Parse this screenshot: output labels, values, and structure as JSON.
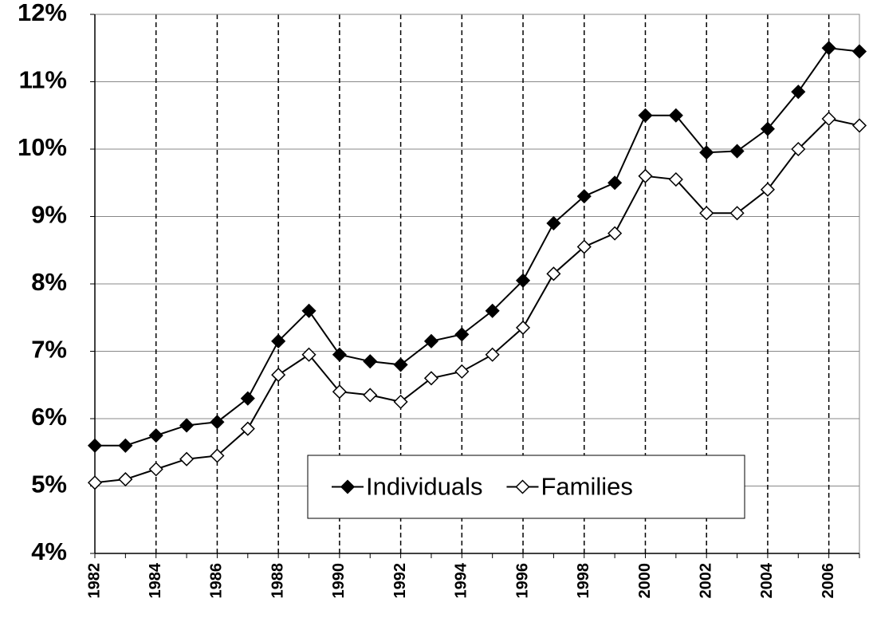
{
  "chart_data": {
    "type": "line",
    "categories": [
      "1982",
      null,
      "1984",
      null,
      "1986",
      null,
      "1988",
      null,
      "1990",
      null,
      "1992",
      null,
      "1994",
      null,
      "1996",
      null,
      "1998",
      null,
      "2000",
      null,
      "2002",
      null,
      "2004",
      null,
      "2006",
      null
    ],
    "series": [
      {
        "name": "Individuals",
        "color": "#000000",
        "marker": "filled-diamond",
        "values": [
          5.6,
          5.6,
          5.75,
          5.9,
          5.95,
          6.3,
          7.15,
          7.6,
          6.95,
          6.85,
          6.8,
          7.15,
          7.25,
          7.6,
          8.05,
          8.9,
          9.3,
          9.5,
          10.5,
          10.5,
          9.95,
          9.97,
          10.3,
          10.85,
          11.5,
          11.45
        ]
      },
      {
        "name": "Families",
        "color": "#000000",
        "marker": "open-diamond",
        "values": [
          5.05,
          5.1,
          5.25,
          5.4,
          5.45,
          5.85,
          6.65,
          6.95,
          6.4,
          6.35,
          6.25,
          6.6,
          6.7,
          6.95,
          7.35,
          8.15,
          8.55,
          8.75,
          9.6,
          9.55,
          9.05,
          9.05,
          9.4,
          10.0,
          10.45,
          10.35
        ]
      }
    ],
    "ylim": [
      4,
      12
    ],
    "yticks": [
      {
        "value": 4,
        "label": "4%"
      },
      {
        "value": 5,
        "label": "5%"
      },
      {
        "value": 6,
        "label": "6%"
      },
      {
        "value": 7,
        "label": "7%"
      },
      {
        "value": 8,
        "label": "8%"
      },
      {
        "value": 9,
        "label": "9%"
      },
      {
        "value": 10,
        "label": "10%"
      },
      {
        "value": 11,
        "label": "11%"
      },
      {
        "value": 12,
        "label": "12%"
      }
    ],
    "grid": true,
    "legend": "lower center"
  }
}
